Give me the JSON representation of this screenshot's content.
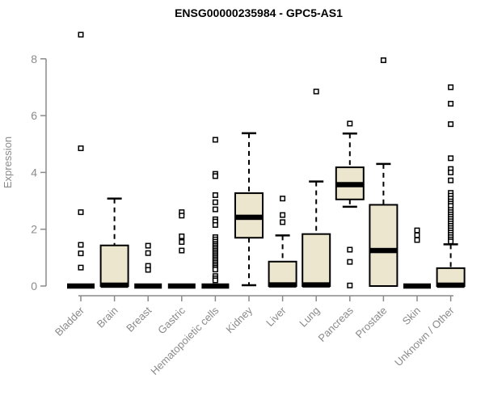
{
  "title": "ENSG00000235984 - GPC5-AS1",
  "chart_data": {
    "type": "boxplot",
    "title": "ENSG00000235984 - GPC5-AS1",
    "xlabel": "",
    "ylabel": "Expression",
    "ylim": [
      0,
      8
    ],
    "yticks": [
      0,
      2,
      4,
      6,
      8
    ],
    "grid": false,
    "legend": "none",
    "categories": [
      "Bladder",
      "Brain",
      "Breast",
      "Gastric",
      "Hematopoietic cells",
      "Kidney",
      "Liver",
      "Lung",
      "Pancreas",
      "Prostate",
      "Skin",
      "Unknown / Other"
    ],
    "series": [
      {
        "category": "Bladder",
        "q1": 0,
        "median": 0,
        "q3": 0,
        "whisker_low": 0,
        "whisker_high": 0,
        "outliers": [
          8.85,
          4.85,
          2.6,
          1.45,
          1.15,
          0.65
        ]
      },
      {
        "category": "Brain",
        "q1": 0,
        "median": 0.03,
        "q3": 1.43,
        "whisker_low": 0,
        "whisker_high": 3.08,
        "outliers": []
      },
      {
        "category": "Breast",
        "q1": 0,
        "median": 0,
        "q3": 0,
        "whisker_low": 0,
        "whisker_high": 0,
        "outliers": [
          1.42,
          1.16,
          0.71,
          0.57
        ]
      },
      {
        "category": "Gastric",
        "q1": 0,
        "median": 0,
        "q3": 0,
        "whisker_low": 0,
        "whisker_high": 0,
        "outliers": [
          2.6,
          2.48,
          1.75,
          1.55,
          1.25
        ]
      },
      {
        "category": "Hematopoietic cells",
        "q1": 0,
        "median": 0,
        "q3": 0,
        "whisker_low": 0,
        "whisker_high": 0,
        "outliers": [
          5.15,
          3.95,
          3.87,
          3.2,
          2.95,
          2.7,
          2.35,
          2.27,
          2.15,
          1.72,
          1.64,
          1.56,
          1.48,
          1.42,
          1.36,
          1.3,
          1.24,
          1.18,
          1.12,
          1.06,
          1.0,
          0.94,
          0.88,
          0.82,
          0.76,
          0.7,
          0.64,
          0.58,
          0.35,
          0.27,
          0.2
        ]
      },
      {
        "category": "Kidney",
        "q1": 1.7,
        "median": 2.42,
        "q3": 3.27,
        "whisker_low": 0.03,
        "whisker_high": 5.38,
        "outliers": []
      },
      {
        "category": "Liver",
        "q1": 0,
        "median": 0.04,
        "q3": 0.86,
        "whisker_low": 0,
        "whisker_high": 1.78,
        "outliers": [
          3.08,
          2.5,
          2.25
        ]
      },
      {
        "category": "Lung",
        "q1": 0,
        "median": 0.04,
        "q3": 1.83,
        "whisker_low": 0,
        "whisker_high": 3.68,
        "outliers": [
          6.85
        ]
      },
      {
        "category": "Pancreas",
        "q1": 3.05,
        "median": 3.57,
        "q3": 4.18,
        "whisker_low": 2.79,
        "whisker_high": 5.37,
        "outliers": [
          5.72,
          1.28,
          0.85,
          0.02
        ]
      },
      {
        "category": "Prostate",
        "q1": 0,
        "median": 1.25,
        "q3": 2.86,
        "whisker_low": 0,
        "whisker_high": 4.3,
        "outliers": [
          7.95
        ]
      },
      {
        "category": "Skin",
        "q1": 0,
        "median": 0,
        "q3": 0,
        "whisker_low": 0,
        "whisker_high": 0,
        "outliers": [
          1.96,
          1.79,
          1.62
        ]
      },
      {
        "category": "Unknown / Other",
        "q1": 0,
        "median": 0.03,
        "q3": 0.63,
        "whisker_low": 0,
        "whisker_high": 1.47,
        "outliers": [
          7.0,
          6.42,
          5.7,
          4.5,
          4.12,
          4.0,
          3.72,
          3.28,
          3.18,
          3.08,
          2.98,
          2.9,
          2.82,
          2.68,
          2.6,
          2.52,
          2.44,
          2.36,
          2.28,
          2.2,
          2.12,
          2.04,
          1.96,
          1.88,
          1.8,
          1.72,
          1.64,
          1.57
        ]
      }
    ],
    "colors": {
      "box_fill": "#ECE6CF",
      "box_stroke": "#000000",
      "median": "#000000",
      "outlier_stroke": "#000000",
      "outlier_fill": "#ffffff",
      "axis_line": "#8a8a8a",
      "axis_text": "#8a8a8a",
      "title": "#000000",
      "background": "#ffffff"
    }
  }
}
